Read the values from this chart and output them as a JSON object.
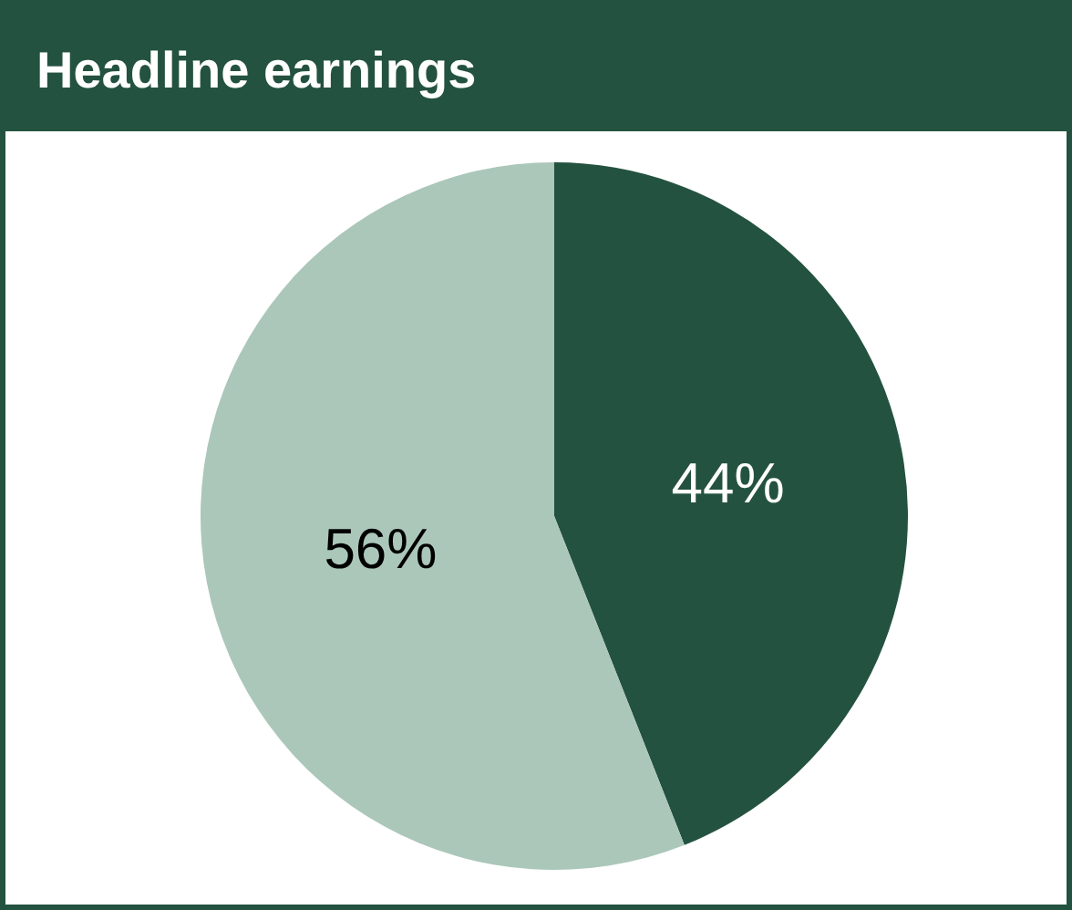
{
  "chart_data": {
    "type": "pie",
    "title": "Headline earnings",
    "categories": [
      null,
      null
    ],
    "values": [
      44,
      56
    ],
    "colors": [
      "#245240",
      "#abc7ba"
    ],
    "value_labels": [
      "44%",
      "56%"
    ]
  }
}
